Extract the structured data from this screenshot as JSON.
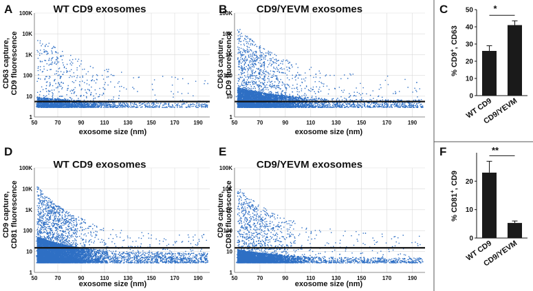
{
  "figure": {
    "divider_color": "#555555",
    "dot_color": "#2e6fc4",
    "bar_color": "#1a1a1a",
    "grid_color": "#d9d9d9"
  },
  "chart_data": [
    {
      "id": "A",
      "type": "scatter",
      "letter": "A",
      "title": "WT CD9 exosomes",
      "xlabel": "exosome size (nm)",
      "ylabel_line1": "CD63 capture,",
      "ylabel_line2": "CD9 fluorescence",
      "xlim": [
        50,
        200
      ],
      "xticks": [
        50,
        70,
        90,
        110,
        130,
        150,
        170,
        190
      ],
      "ylim": [
        1,
        100000
      ],
      "yscale": "log",
      "yticks": [
        {
          "value": 1,
          "label": "1"
        },
        {
          "value": 10,
          "label": "10"
        },
        {
          "value": 100,
          "label": "100"
        },
        {
          "value": 1000,
          "label": "1K"
        },
        {
          "value": 10000,
          "label": "10K"
        },
        {
          "value": 100000,
          "label": "100K"
        }
      ],
      "threshold": 5.5,
      "point_count_estimate": 2300,
      "density": {
        "dense_min": 3,
        "dense_max": 10,
        "spread_max_log10": 4.1,
        "size_decay_nm": 30
      }
    },
    {
      "id": "B",
      "type": "scatter",
      "letter": "B",
      "title": "CD9/YEVM exosomes",
      "xlabel": "exosome size (nm)",
      "ylabel_line1": "CD63 capture,",
      "ylabel_line2": "CD9 fluorescence",
      "xlim": [
        50,
        200
      ],
      "xticks": [
        50,
        70,
        90,
        110,
        130,
        150,
        170,
        190
      ],
      "ylim": [
        1,
        100000
      ],
      "yscale": "log",
      "yticks": [
        {
          "value": 1,
          "label": "1"
        },
        {
          "value": 10,
          "label": "10"
        },
        {
          "value": 100,
          "label": "100"
        },
        {
          "value": 1000,
          "label": "1K"
        },
        {
          "value": 10000,
          "label": "10K"
        },
        {
          "value": 100000,
          "label": "100K"
        }
      ],
      "threshold": 5.5,
      "point_count_estimate": 6500,
      "density": {
        "dense_min": 3,
        "dense_max": 30,
        "spread_max_log10": 4.5,
        "size_decay_nm": 24
      }
    },
    {
      "id": "C",
      "type": "bar",
      "letter": "C",
      "categories": [
        "WT CD9",
        "CD9/YEVM"
      ],
      "values": [
        26,
        41
      ],
      "errors": [
        3,
        2.5
      ],
      "ylabel_main": "% CD9",
      "ylabel_sup": "+",
      "ylabel_rest": ", CD63",
      "ylim": [
        0,
        50
      ],
      "yticks": [
        0,
        10,
        20,
        30,
        40,
        50
      ],
      "significance": "*"
    },
    {
      "id": "D",
      "type": "scatter",
      "letter": "D",
      "title": "WT CD9 exosomes",
      "xlabel": "exosome size (nm)",
      "ylabel_line1": "CD9 capture,",
      "ylabel_line2": "CD81 fluorescence",
      "xlim": [
        50,
        200
      ],
      "xticks": [
        50,
        70,
        90,
        110,
        130,
        150,
        170,
        190
      ],
      "ylim": [
        1,
        100000
      ],
      "yscale": "log",
      "yticks": [
        {
          "value": 1,
          "label": "1"
        },
        {
          "value": 10,
          "label": "10"
        },
        {
          "value": 100,
          "label": "100"
        },
        {
          "value": 1000,
          "label": "1K"
        },
        {
          "value": 10000,
          "label": "10K"
        },
        {
          "value": 100000,
          "label": "100K"
        }
      ],
      "threshold": 15,
      "point_count_estimate": 9000,
      "density": {
        "dense_min": 3,
        "dense_max": 60,
        "spread_max_log10": 4.3,
        "size_decay_nm": 22
      }
    },
    {
      "id": "E",
      "type": "scatter",
      "letter": "E",
      "title": "CD9/YEVM exosomes",
      "xlabel": "exosome size (nm)",
      "ylabel_line1": "CD9 capture,",
      "ylabel_line2": "CD81 fluorescence",
      "xlim": [
        50,
        200
      ],
      "xticks": [
        50,
        70,
        90,
        110,
        130,
        150,
        170,
        190
      ],
      "ylim": [
        1,
        100000
      ],
      "yscale": "log",
      "yticks": [
        {
          "value": 1,
          "label": "1"
        },
        {
          "value": 10,
          "label": "10"
        },
        {
          "value": 100,
          "label": "100"
        },
        {
          "value": 1000,
          "label": "1K"
        },
        {
          "value": 10000,
          "label": "10K"
        },
        {
          "value": 100000,
          "label": "100K"
        }
      ],
      "threshold": 15,
      "point_count_estimate": 5500,
      "density": {
        "dense_min": 3,
        "dense_max": 14,
        "spread_max_log10": 4.3,
        "size_decay_nm": 22
      }
    },
    {
      "id": "F",
      "type": "bar",
      "letter": "F",
      "categories": [
        "WT CD9",
        "CD9/YEVM"
      ],
      "values": [
        23,
        5.3
      ],
      "errors": [
        4,
        0.7
      ],
      "ylabel_main": "% CD81",
      "ylabel_sup": "+",
      "ylabel_rest": ", CD9",
      "ylim": [
        0,
        30
      ],
      "yticks": [
        0,
        10,
        20
      ],
      "significance": "**"
    }
  ]
}
